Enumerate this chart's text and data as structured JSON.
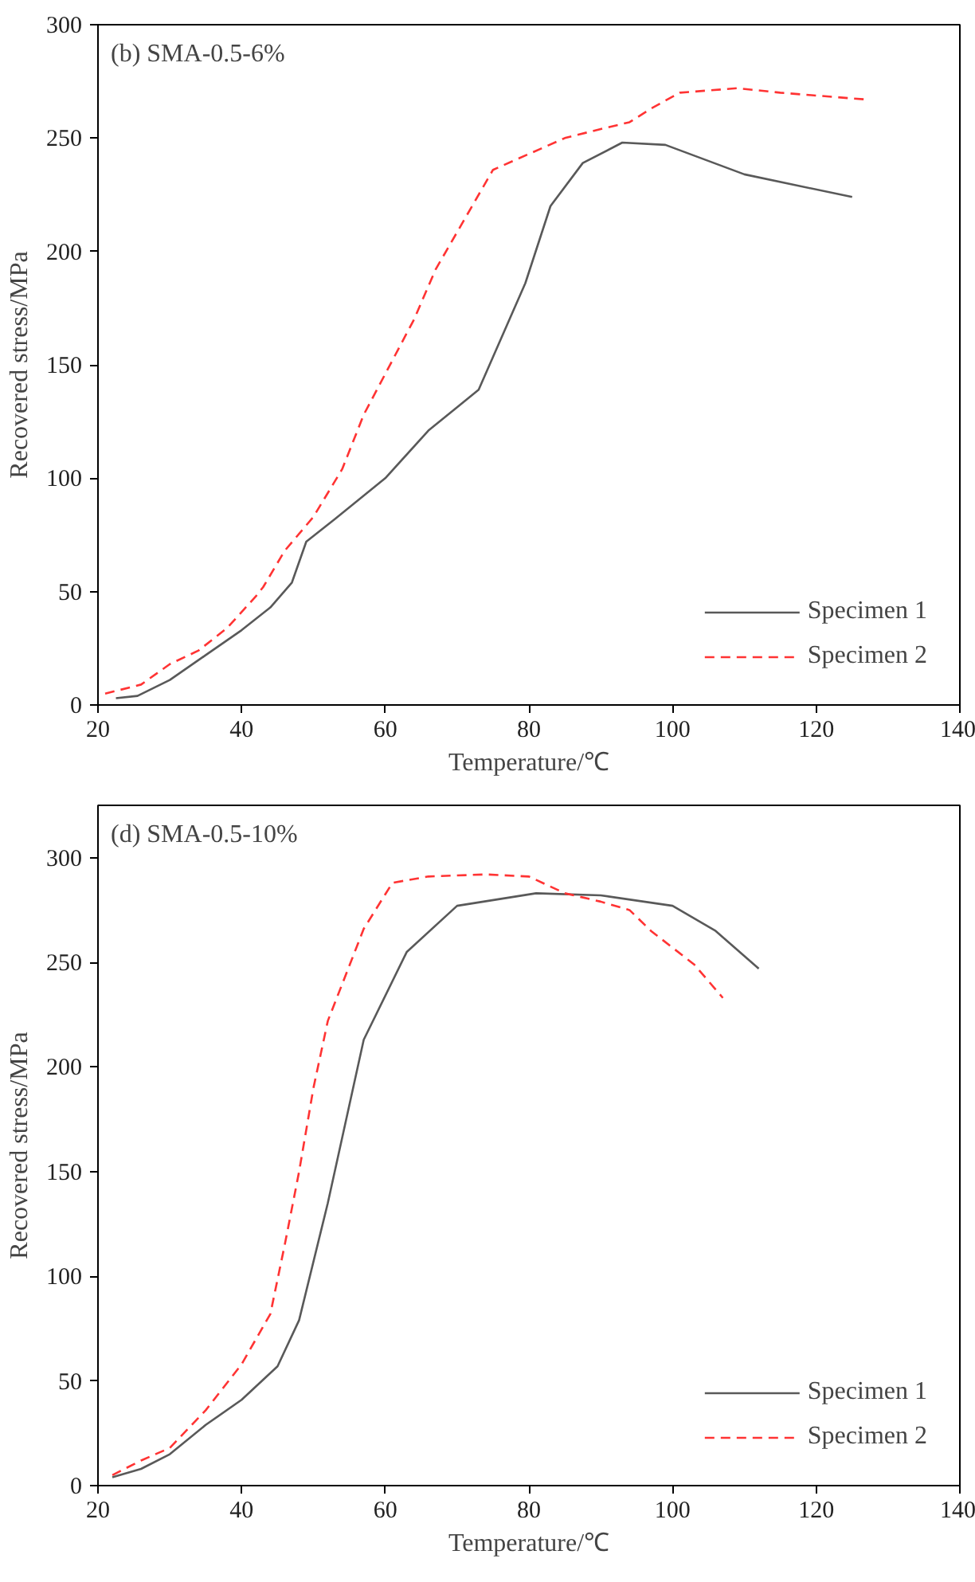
{
  "chart_data": [
    {
      "type": "line",
      "title": "(b) SMA-0.5-6%",
      "xlabel": "Temperature/℃",
      "ylabel": "Recovered stress/MPa",
      "xlim": [
        20,
        140
      ],
      "ylim": [
        0,
        300
      ],
      "xticks": [
        20,
        40,
        60,
        80,
        100,
        120,
        140
      ],
      "yticks": [
        0,
        50,
        100,
        150,
        200,
        250,
        300
      ],
      "grid": false,
      "legend": "bottom right",
      "series": [
        {
          "name": "Specimen 1",
          "color": "#595959",
          "line_style": "solid",
          "x": [
            22.5,
            25.5,
            30,
            35,
            40,
            44,
            47,
            49,
            53,
            60,
            66,
            73,
            79.5,
            83,
            87.5,
            93,
            99,
            110,
            125
          ],
          "values": [
            3,
            4,
            11,
            22,
            33,
            43,
            54,
            72,
            82,
            100,
            121,
            139,
            186,
            220,
            239,
            248,
            247,
            234,
            224
          ]
        },
        {
          "name": "Specimen 2",
          "color": "#ff3333",
          "line_style": "dashed",
          "x": [
            21,
            26,
            30,
            34,
            38,
            42,
            43,
            46,
            50,
            54,
            57,
            60,
            64,
            67,
            71,
            75,
            80,
            85,
            90,
            94,
            97,
            101,
            109,
            115,
            127
          ],
          "values": [
            5,
            9,
            18,
            24,
            34,
            48,
            52,
            68,
            83,
            104,
            128,
            146,
            170,
            192,
            214,
            236,
            243,
            250,
            254,
            257,
            263,
            270,
            272,
            270,
            267
          ]
        }
      ]
    },
    {
      "type": "line",
      "title": "(d) SMA-0.5-10%",
      "xlabel": "Temperature/℃",
      "ylabel": "Recovered stress/MPa",
      "xlim": [
        20,
        140
      ],
      "ylim": [
        0,
        325
      ],
      "xticks": [
        20,
        40,
        60,
        80,
        100,
        120,
        140
      ],
      "yticks": [
        0,
        50,
        100,
        150,
        200,
        250,
        300
      ],
      "grid": false,
      "legend": "bottom right",
      "series": [
        {
          "name": "Specimen 1",
          "color": "#595959",
          "line_style": "solid",
          "x": [
            22,
            26,
            30,
            35,
            40,
            45,
            48,
            52,
            57,
            63,
            70,
            81,
            90,
            100,
            106,
            112
          ],
          "values": [
            4,
            8,
            15,
            29,
            41,
            57,
            79,
            135,
            213,
            255,
            277,
            283,
            282,
            277,
            265,
            247
          ]
        },
        {
          "name": "Specimen 2",
          "color": "#ff3333",
          "line_style": "dashed",
          "x": [
            22,
            26,
            30,
            35,
            40,
            44,
            46,
            48,
            50,
            52,
            57,
            61,
            66,
            74,
            80,
            85,
            90,
            94,
            97,
            100,
            103,
            107
          ],
          "values": [
            5,
            12,
            18,
            36,
            58,
            82,
            115,
            150,
            190,
            222,
            266,
            288,
            291,
            292,
            291,
            283,
            279,
            275,
            265,
            257,
            249,
            233
          ]
        }
      ]
    }
  ]
}
